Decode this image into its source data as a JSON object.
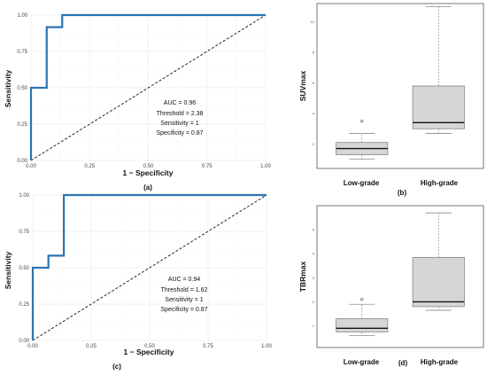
{
  "chart_data": [
    {
      "id": "a",
      "type": "line",
      "panel_label": "(a)",
      "xlabel": "1 − Specificity",
      "ylabel": "Sensitivity",
      "xlim": [
        0,
        1
      ],
      "ylim": [
        0,
        1
      ],
      "xticks": [
        "0.00",
        "0.25",
        "0.50",
        "0.75",
        "1.00"
      ],
      "yticks": [
        "0.00",
        "0.25",
        "0.50",
        "0.75",
        "1.00"
      ],
      "grid": true,
      "series": [
        {
          "color": "#2c74b3",
          "x": [
            0,
            0,
            0.067,
            0.067,
            0.133,
            0.133,
            1.0
          ],
          "y": [
            0,
            0.5,
            0.5,
            0.917,
            0.917,
            1.0,
            1.0
          ]
        }
      ],
      "reference_line": {
        "x": [
          0,
          1
        ],
        "y": [
          0,
          1
        ],
        "style": "dashed"
      },
      "annotations": [
        "AUC =  0.96",
        "Threshold = 2.38",
        "Sensitivity = 1",
        "Specificity = 0.87"
      ]
    },
    {
      "id": "b",
      "type": "box",
      "panel_label": "(b)",
      "ylabel": "SUVmax",
      "categories": [
        "Low-grade",
        "High-grade"
      ],
      "ylim": [
        0.4,
        11.2
      ],
      "yticks": [
        2,
        4,
        6,
        8,
        10
      ],
      "boxes": [
        {
          "whisker_low": 1.0,
          "q1": 1.3,
          "median": 1.7,
          "q3": 2.1,
          "whisker_high": 2.7,
          "outliers": [
            3.5
          ]
        },
        {
          "whisker_low": 2.7,
          "q1": 3.0,
          "median": 3.4,
          "q3": 5.8,
          "whisker_high": 11.0,
          "outliers": []
        }
      ],
      "box_color": "#d6d6d6"
    },
    {
      "id": "c",
      "type": "line",
      "panel_label": "(c)",
      "xlabel": "1 − Specificity",
      "ylabel": "Sensitivity",
      "xlim": [
        0,
        1
      ],
      "ylim": [
        0,
        1
      ],
      "xticks": [
        "0.00",
        "0.25",
        "0.50",
        "0.75",
        "1.00"
      ],
      "yticks": [
        "0.00",
        "0.25",
        "0.50",
        "0.75",
        "1.00"
      ],
      "grid": true,
      "series": [
        {
          "color": "#2c74b3",
          "x": [
            0,
            0,
            0.067,
            0.067,
            0.133,
            0.133,
            1.0
          ],
          "y": [
            0,
            0.5,
            0.5,
            0.583,
            0.583,
            1.0,
            1.0
          ]
        }
      ],
      "reference_line": {
        "x": [
          0,
          1
        ],
        "y": [
          0,
          1
        ],
        "style": "dashed"
      },
      "annotations": [
        "AUC =  0.94",
        "Threshold = 1.62",
        "Sensitivity = 1",
        "Specificity = 0.87"
      ]
    },
    {
      "id": "d",
      "type": "box",
      "panel_label": "(d)",
      "ylabel": "TBRmax",
      "categories": [
        "Low-grade",
        "High-grade"
      ],
      "ylim": [
        0.1,
        6.0
      ],
      "yticks": [
        1,
        2,
        3,
        4,
        5
      ],
      "boxes": [
        {
          "whisker_low": 0.6,
          "q1": 0.75,
          "median": 0.9,
          "q3": 1.3,
          "whisker_high": 1.9,
          "outliers": [
            2.1
          ]
        },
        {
          "whisker_low": 1.65,
          "q1": 1.8,
          "median": 2.0,
          "q3": 3.85,
          "whisker_high": 5.7,
          "outliers": []
        }
      ],
      "box_color": "#d6d6d6"
    }
  ]
}
